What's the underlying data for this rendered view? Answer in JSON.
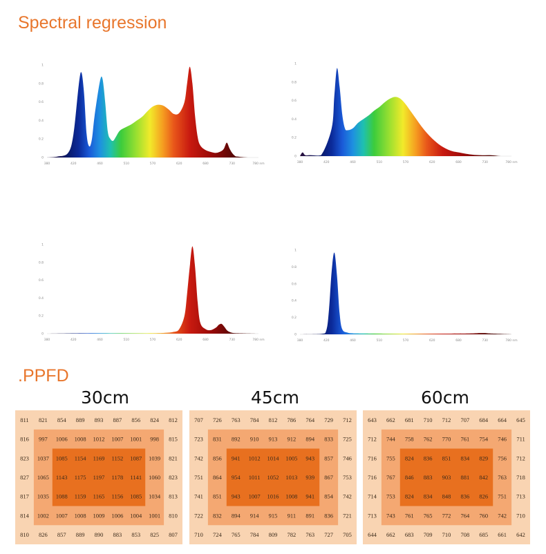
{
  "titles": {
    "spectral": "Spectral regression",
    "ppfd": ".PPFD"
  },
  "colors": {
    "title": "#e8762c",
    "zone_outer": "#f9d4b2",
    "zone_middle": "#f4a872",
    "zone_inner": "#e8701f"
  },
  "chart_data": [
    {
      "type": "area",
      "title": "",
      "y_ticks": [
        "1",
        "0.8",
        "0.6",
        "0.4",
        "0.2",
        "0"
      ],
      "x_tick_labels": [
        "380",
        "420",
        "460",
        "510",
        "570",
        "620",
        "680",
        "730",
        "780 nm"
      ],
      "xlim": [
        380,
        780
      ],
      "ylim": [
        0,
        1
      ],
      "x": [
        380,
        400,
        420,
        430,
        440,
        445,
        450,
        455,
        460,
        465,
        470,
        480,
        485,
        490,
        495,
        500,
        505,
        510,
        515,
        520,
        530,
        540,
        550,
        560,
        570,
        580,
        590,
        600,
        610,
        620,
        630,
        640,
        645,
        650,
        655,
        660,
        665,
        670,
        680,
        690,
        700,
        710,
        715,
        720,
        725,
        730,
        735,
        740,
        760,
        780
      ],
      "y": [
        0,
        0.01,
        0.05,
        0.25,
        0.78,
        0.92,
        0.7,
        0.25,
        0.12,
        0.2,
        0.45,
        0.82,
        0.85,
        0.6,
        0.28,
        0.2,
        0.18,
        0.22,
        0.27,
        0.3,
        0.33,
        0.36,
        0.4,
        0.44,
        0.5,
        0.55,
        0.57,
        0.56,
        0.52,
        0.47,
        0.48,
        0.6,
        0.8,
        0.98,
        0.8,
        0.45,
        0.22,
        0.13,
        0.08,
        0.06,
        0.05,
        0.07,
        0.1,
        0.16,
        0.1,
        0.05,
        0.02,
        0.01,
        0,
        0
      ]
    },
    {
      "type": "area",
      "title": "",
      "y_ticks": [
        "1",
        "0.8",
        "0.6",
        "0.4",
        "0.2",
        "0"
      ],
      "x_tick_labels": [
        "380",
        "420",
        "460",
        "510",
        "570",
        "620",
        "680",
        "730",
        "780 nm"
      ],
      "xlim": [
        380,
        780
      ],
      "ylim": [
        0,
        1
      ],
      "x": [
        380,
        385,
        390,
        400,
        420,
        440,
        445,
        450,
        455,
        460,
        465,
        470,
        480,
        490,
        500,
        510,
        520,
        530,
        540,
        550,
        560,
        570,
        580,
        590,
        600,
        610,
        620,
        630,
        640,
        650,
        660,
        670,
        680,
        700,
        720,
        740,
        760,
        780
      ],
      "y": [
        0,
        0.04,
        0.01,
        0.01,
        0.01,
        0.3,
        0.65,
        0.95,
        0.75,
        0.45,
        0.3,
        0.28,
        0.3,
        0.36,
        0.4,
        0.44,
        0.49,
        0.53,
        0.58,
        0.62,
        0.64,
        0.62,
        0.56,
        0.48,
        0.4,
        0.32,
        0.25,
        0.19,
        0.14,
        0.1,
        0.07,
        0.05,
        0.04,
        0.02,
        0.01,
        0.01,
        0,
        0
      ]
    },
    {
      "type": "area",
      "title": "",
      "y_ticks": [
        "1",
        "0.8",
        "0.6",
        "0.4",
        "0.2",
        "0"
      ],
      "x_tick_labels": [
        "380",
        "420",
        "460",
        "510",
        "570",
        "620",
        "680",
        "730",
        "780 nm"
      ],
      "xlim": [
        380,
        780
      ],
      "ylim": [
        0,
        1
      ],
      "x": [
        380,
        450,
        500,
        550,
        600,
        620,
        630,
        640,
        645,
        650,
        655,
        660,
        665,
        670,
        680,
        690,
        700,
        705,
        710,
        715,
        720,
        725,
        730,
        740,
        780
      ],
      "y": [
        0,
        0.005,
        0.005,
        0.005,
        0.008,
        0.02,
        0.05,
        0.2,
        0.45,
        0.75,
        0.98,
        0.75,
        0.35,
        0.12,
        0.05,
        0.04,
        0.07,
        0.1,
        0.11,
        0.08,
        0.04,
        0.02,
        0.01,
        0.005,
        0
      ]
    },
    {
      "type": "area",
      "title": "",
      "y_ticks": [
        "1",
        "0.8",
        "0.6",
        "0.4",
        "0.2",
        "0"
      ],
      "x_tick_labels": [
        "380",
        "420",
        "460",
        "510",
        "570",
        "620",
        "680",
        "730",
        "780 nm"
      ],
      "xlim": [
        380,
        780
      ],
      "ylim": [
        0,
        1
      ],
      "x": [
        380,
        420,
        430,
        435,
        440,
        445,
        450,
        455,
        460,
        470,
        480,
        500,
        550,
        600,
        650,
        700,
        720,
        730,
        740,
        780
      ],
      "y": [
        0,
        0.005,
        0.05,
        0.3,
        0.75,
        0.97,
        0.7,
        0.25,
        0.06,
        0.02,
        0.012,
        0.01,
        0.008,
        0.008,
        0.008,
        0.01,
        0.015,
        0.015,
        0.01,
        0
      ]
    },
    {
      "type": "heatmap",
      "title": "30cm",
      "values": [
        [
          811,
          821,
          854,
          889,
          893,
          887,
          856,
          824,
          812
        ],
        [
          816,
          997,
          1006,
          1008,
          1012,
          1007,
          1001,
          998,
          815
        ],
        [
          823,
          1037,
          1085,
          1154,
          1169,
          1152,
          1087,
          1039,
          821
        ],
        [
          827,
          1065,
          1143,
          1175,
          1197,
          1178,
          1141,
          1060,
          823
        ],
        [
          817,
          1035,
          1088,
          1159,
          1165,
          1156,
          1085,
          1034,
          813
        ],
        [
          814,
          1002,
          1007,
          1008,
          1009,
          1006,
          1004,
          1001,
          810
        ],
        [
          810,
          826,
          857,
          889,
          890,
          883,
          853,
          825,
          807
        ]
      ]
    },
    {
      "type": "heatmap",
      "title": "45cm",
      "values": [
        [
          707,
          726,
          763,
          784,
          812,
          786,
          764,
          729,
          712
        ],
        [
          723,
          831,
          892,
          910,
          913,
          912,
          894,
          833,
          725
        ],
        [
          742,
          856,
          941,
          1012,
          1014,
          1005,
          943,
          857,
          746
        ],
        [
          751,
          864,
          954,
          1011,
          1052,
          1013,
          939,
          867,
          753
        ],
        [
          741,
          851,
          943,
          1007,
          1016,
          1008,
          941,
          854,
          742
        ],
        [
          722,
          832,
          894,
          914,
          915,
          911,
          891,
          836,
          721
        ],
        [
          710,
          724,
          765,
          784,
          809,
          782,
          763,
          727,
          705
        ]
      ]
    },
    {
      "type": "heatmap",
      "title": "60cm",
      "values": [
        [
          643,
          662,
          681,
          710,
          712,
          707,
          684,
          664,
          645
        ],
        [
          712,
          744,
          758,
          762,
          770,
          761,
          754,
          746,
          711
        ],
        [
          716,
          755,
          824,
          836,
          851,
          834,
          829,
          756,
          712
        ],
        [
          716,
          767,
          846,
          883,
          903,
          881,
          842,
          763,
          718
        ],
        [
          714,
          753,
          824,
          834,
          848,
          836,
          826,
          751,
          713
        ],
        [
          713,
          743,
          761,
          765,
          772,
          764,
          760,
          742,
          710
        ],
        [
          644,
          662,
          683,
          709,
          710,
          708,
          685,
          661,
          642
        ]
      ]
    }
  ]
}
